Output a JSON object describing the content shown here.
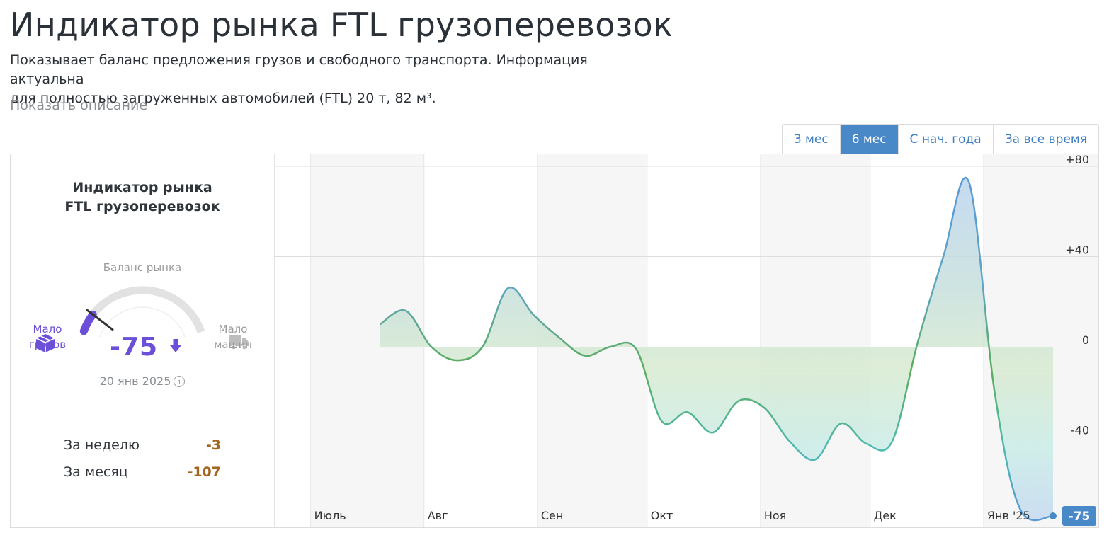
{
  "page": {
    "title": "Индикатор рынка FTL грузоперевозок",
    "description_line1": "Показывает баланс предложения грузов и свободного транспорта. Информация актуальна",
    "description_line2": "для полностью загруженных автомобилей (FTL) 20 т, 82 м³.",
    "show_description": "Показать описание"
  },
  "tabs": [
    {
      "label": "3 мес",
      "active": false
    },
    {
      "label": "6 мес",
      "active": true
    },
    {
      "label": "С нач. года",
      "active": false
    },
    {
      "label": "За все время",
      "active": false
    }
  ],
  "gauge": {
    "title_line1": "Индикатор рынка",
    "title_line2": "FTL грузоперевозок",
    "balance_label": "Баланс рынка",
    "value": "-75",
    "value_numeric": -75,
    "trend_icon": "arrow-down-icon",
    "left_label_line1": "Мало",
    "left_label_line2": "грузов",
    "left_icon": "box-icon",
    "right_label_line1": "Мало",
    "right_label_line2": "машин",
    "right_icon": "truck-icon",
    "date": "20 янв 2025",
    "range": [
      -100,
      100
    ]
  },
  "stats": {
    "week_label": "За неделю",
    "week_value": "-3",
    "month_label": "За месяц",
    "month_value": "-107"
  },
  "colors": {
    "accent": "#6c4fd8",
    "tab_active": "#4a89c8",
    "stat_value": "#a3661e",
    "line_positive": "#5cad5c",
    "line_negative": "#4fb9b2",
    "line_deep": "#5b9bd5"
  },
  "chart_data": {
    "type": "area",
    "title": "",
    "xlabel": "",
    "ylabel": "",
    "ylim": [
      -75,
      80
    ],
    "y_ticks": [
      "+80",
      "+40",
      "0",
      "-40"
    ],
    "y_tick_values": [
      80,
      40,
      0,
      -40
    ],
    "month_labels": [
      "Июль",
      "Авг",
      "Сен",
      "Окт",
      "Ноя",
      "Дек",
      "Янв '25"
    ],
    "current_value_label": "-75",
    "series": [
      {
        "x": [
          "2024-07-20",
          "2024-07-27",
          "2024-08-03",
          "2024-08-10",
          "2024-08-17",
          "2024-08-24",
          "2024-08-31",
          "2024-09-07",
          "2024-09-14",
          "2024-09-21",
          "2024-09-28",
          "2024-10-05",
          "2024-10-12",
          "2024-10-19",
          "2024-10-26",
          "2024-11-02",
          "2024-11-09",
          "2024-11-16",
          "2024-11-23",
          "2024-11-30",
          "2024-12-07",
          "2024-12-14",
          "2024-12-21",
          "2024-12-28",
          "2025-01-04",
          "2025-01-11",
          "2025-01-20"
        ],
        "values": [
          10,
          16,
          0,
          -6,
          0,
          26,
          14,
          4,
          -4,
          0,
          -1,
          -33,
          -29,
          -38,
          -24,
          -27,
          -42,
          -50,
          -34,
          -43,
          -42,
          2,
          40,
          73,
          -20,
          -72,
          -75
        ]
      }
    ]
  }
}
